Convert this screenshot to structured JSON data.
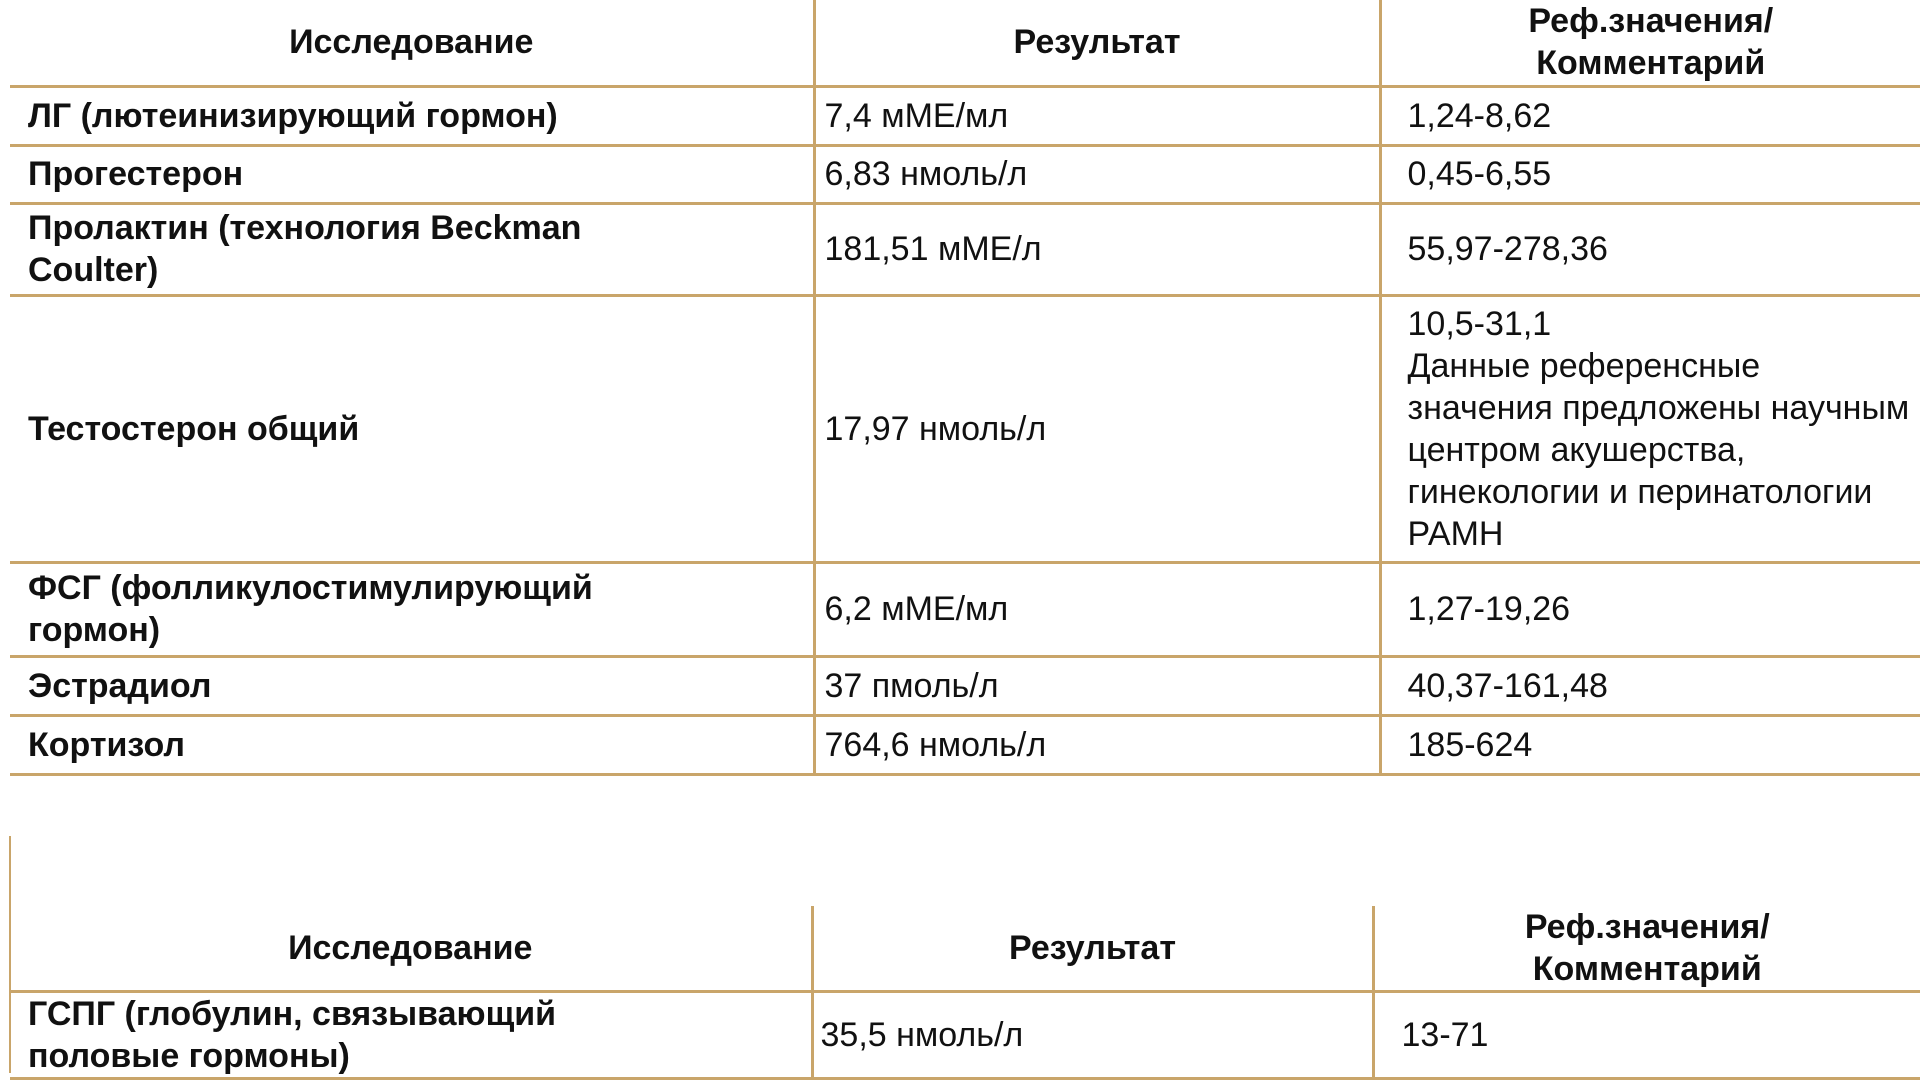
{
  "headers": {
    "study": "Исследование",
    "result": "Результат",
    "reference": "Реф.значения/ Комментарий"
  },
  "table1": {
    "rows": [
      {
        "study": "ЛГ (лютеинизирующий гормон)",
        "result": "7,4 мМЕ/мл",
        "reference": "1,24-8,62"
      },
      {
        "study": "Прогестерон",
        "result": "6,83 нмоль/л",
        "reference": "0,45-6,55"
      },
      {
        "study": "Пролактин (технология Beckman Coulter)",
        "result": "181,51 мМЕ/л",
        "reference": "55,97-278,36"
      },
      {
        "study": "Тестостерон общий",
        "result": "17,97 нмоль/л",
        "reference": "10,5-31,1\nДанные референсные значения предложены научным центром акушерства, гинекологии и перинатологии РАМН"
      },
      {
        "study": "ФСГ (фолликулостимулирующий гормон)",
        "result": "6,2 мМЕ/мл",
        "reference": "1,27-19,26"
      },
      {
        "study": "Эстрадиол",
        "result": "37 пмоль/л",
        "reference": "40,37-161,48"
      },
      {
        "study": "Кортизол",
        "result": "764,6 нмоль/л",
        "reference": "185-624"
      }
    ]
  },
  "table2": {
    "rows": [
      {
        "study": "ГСПГ (глобулин, связывающий половые гормоны)",
        "result": "35,5 нмоль/л",
        "reference": "13-71"
      }
    ]
  },
  "colors": {
    "border": "#c9a56a",
    "text": "#111111"
  }
}
